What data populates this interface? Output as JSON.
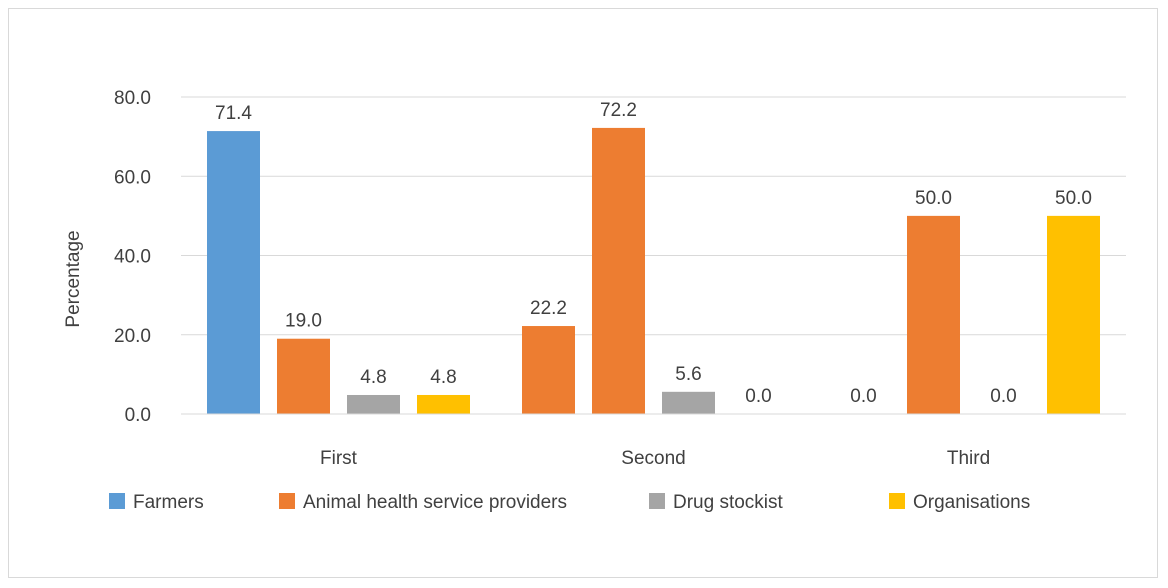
{
  "chart_data": {
    "type": "bar",
    "title": "",
    "xlabel": "",
    "ylabel": "Percentage",
    "ylim": [
      0,
      80
    ],
    "yticks": [
      "0.0",
      "20.0",
      "40.0",
      "60.0",
      "80.0"
    ],
    "yticks_values": [
      0,
      20,
      40,
      60,
      80
    ],
    "grid": true,
    "legend": "bottom",
    "categories": [
      "First",
      "Second",
      "Third"
    ],
    "series": [
      {
        "name": "Farmers",
        "color": "#5b9bd5",
        "values": [
          71.4,
          null,
          null
        ],
        "labels": [
          "71.4",
          "",
          ""
        ]
      },
      {
        "name": "Animal health service providers",
        "color": "#ed7d31",
        "values": [
          19.0,
          22.2,
          0.0
        ],
        "labels": [
          "19.0",
          "22.2",
          "0.0"
        ]
      },
      {
        "name": "Drug stockist",
        "color": "#a5a5a5",
        "values": [
          4.8,
          72.2,
          50.0
        ],
        "labels": [
          "4.8",
          "72.2",
          "50.0"
        ]
      },
      {
        "name": "Organisations",
        "color": "#ffc000",
        "values": [
          4.8,
          5.6,
          0.0
        ],
        "labels": [
          "4.8",
          "5.6",
          "0.0"
        ]
      },
      {
        "name": "",
        "color": "#a5a5a5",
        "values": [
          null,
          0.0,
          50.0
        ],
        "labels": [
          "",
          "0.0",
          "50.0"
        ]
      }
    ]
  }
}
